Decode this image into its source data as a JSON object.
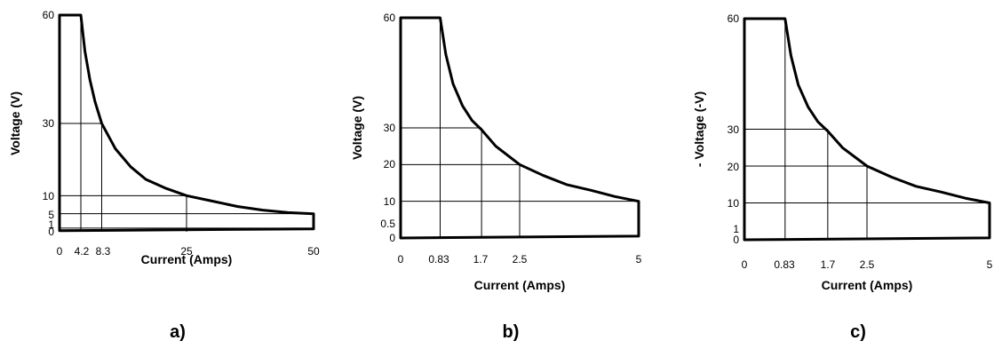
{
  "chart_data": [
    {
      "type": "line",
      "panel_label": "a)",
      "xlabel": "Current (Amps)",
      "ylabel": "Voltage (V)",
      "xlim": [
        0,
        50
      ],
      "ylim": [
        0,
        60
      ],
      "x_ticks": [
        "0",
        "4.2",
        "8.3",
        "25",
        "50"
      ],
      "y_ticks": [
        "60",
        "30",
        "10",
        "5",
        "1",
        "0"
      ],
      "grid": "operating-point guide lines",
      "boundary": [
        [
          0,
          60
        ],
        [
          4.2,
          60
        ],
        [
          5,
          50
        ],
        [
          6,
          42
        ],
        [
          7,
          36
        ],
        [
          8.3,
          30
        ],
        [
          11,
          23
        ],
        [
          14,
          18
        ],
        [
          17,
          14.5
        ],
        [
          21,
          12
        ],
        [
          25,
          10
        ],
        [
          30,
          8.5
        ],
        [
          35,
          7
        ],
        [
          40,
          6
        ],
        [
          45,
          5.3
        ],
        [
          50,
          5
        ],
        [
          50,
          0.8
        ],
        [
          0,
          0.3
        ]
      ],
      "guides": [
        [
          4.2,
          60
        ],
        [
          8.3,
          30
        ],
        [
          25,
          10
        ]
      ],
      "h_levels": [
        5,
        1
      ]
    },
    {
      "type": "line",
      "panel_label": "b)",
      "xlabel": "Current (Amps)",
      "ylabel": "Voltage (V)",
      "xlim": [
        0,
        5
      ],
      "ylim": [
        0,
        60
      ],
      "x_ticks": [
        "0",
        "0.83",
        "1.7",
        "2.5",
        "5"
      ],
      "y_ticks": [
        "60",
        "30",
        "20",
        "10",
        "0.5",
        "0"
      ],
      "grid": "operating-point guide lines",
      "boundary": [
        [
          0,
          60
        ],
        [
          0.83,
          60
        ],
        [
          0.95,
          50
        ],
        [
          1.1,
          42
        ],
        [
          1.3,
          36
        ],
        [
          1.5,
          32
        ],
        [
          1.7,
          29.5
        ],
        [
          2.0,
          25
        ],
        [
          2.5,
          20
        ],
        [
          3.0,
          17
        ],
        [
          3.5,
          14.5
        ],
        [
          4.0,
          13
        ],
        [
          4.5,
          11.3
        ],
        [
          5,
          10
        ],
        [
          5,
          0.5
        ],
        [
          0,
          0
        ]
      ],
      "guides": [
        [
          0.83,
          60
        ],
        [
          1.7,
          30
        ],
        [
          2.5,
          20
        ]
      ],
      "h_levels": [
        10
      ]
    },
    {
      "type": "line",
      "panel_label": "c)",
      "xlabel": "Current (Amps)",
      "ylabel": "- Voltage (-V)",
      "xlim": [
        0,
        5
      ],
      "ylim": [
        0,
        60
      ],
      "x_ticks": [
        "0",
        "0.83",
        "1.7",
        "2.5",
        "5"
      ],
      "y_ticks": [
        "60",
        "30",
        "20",
        "10",
        "1",
        "0"
      ],
      "grid": "operating-point guide lines",
      "boundary": [
        [
          0,
          60
        ],
        [
          0.83,
          60
        ],
        [
          0.95,
          50
        ],
        [
          1.1,
          42
        ],
        [
          1.3,
          36
        ],
        [
          1.5,
          32
        ],
        [
          1.7,
          29.5
        ],
        [
          2.0,
          25
        ],
        [
          2.5,
          20
        ],
        [
          3.0,
          17
        ],
        [
          3.5,
          14.5
        ],
        [
          4.0,
          13
        ],
        [
          4.5,
          11.3
        ],
        [
          5,
          10
        ],
        [
          5,
          0.5
        ],
        [
          0,
          0
        ]
      ],
      "guides": [
        [
          0.83,
          60
        ],
        [
          1.7,
          30
        ],
        [
          2.5,
          20
        ]
      ],
      "h_levels": [
        10
      ]
    }
  ]
}
